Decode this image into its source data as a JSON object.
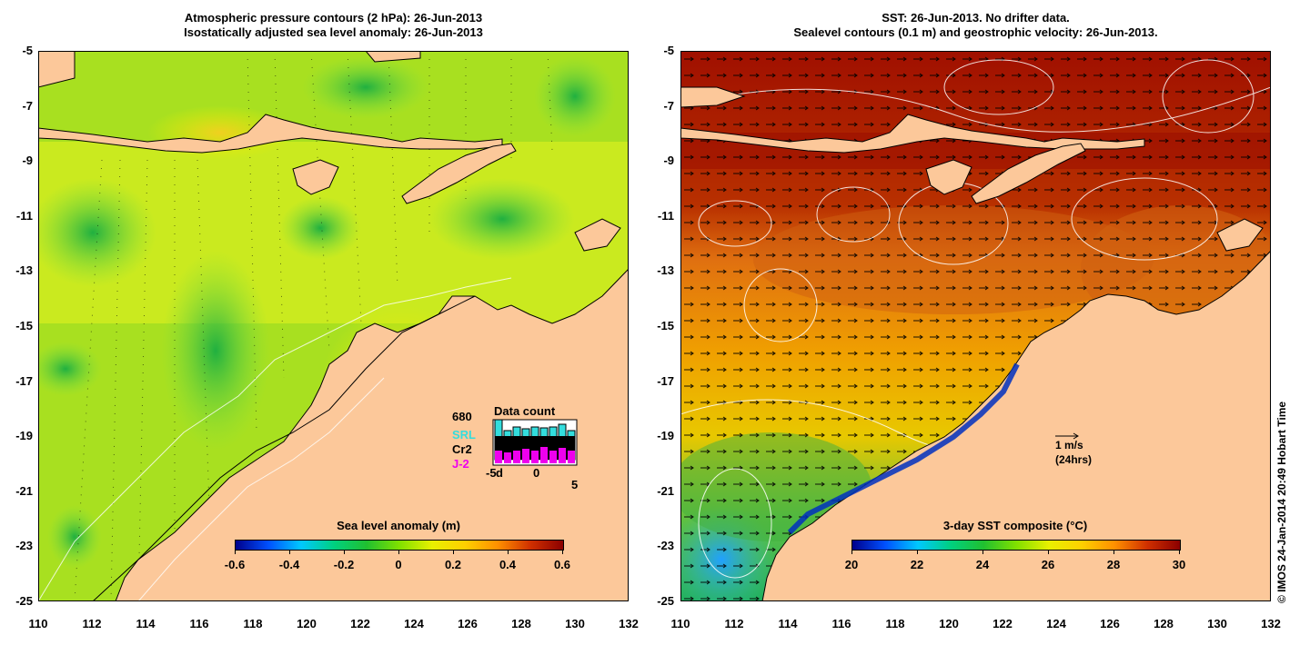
{
  "left_panel": {
    "title_line1": "Atmospheric pressure contours (2 hPa): 26-Jun-2013",
    "title_line2": "Isostatically adjusted sea level anomaly: 26-Jun-2013",
    "colorbar": {
      "title": "Sea level anomaly (m)",
      "ticks": [
        "-0.6",
        "-0.4",
        "-0.2",
        "0",
        "0.2",
        "0.4",
        "0.6"
      ],
      "range": [
        -0.6,
        0.6
      ],
      "colors": [
        "#00008b",
        "#0050ff",
        "#00c8ff",
        "#00d080",
        "#20c030",
        "#80e000",
        "#e8f000",
        "#ffd000",
        "#ff9000",
        "#d03000",
        "#8b0000"
      ]
    },
    "data_count": {
      "title": "Data count",
      "total": "680",
      "satellites": [
        {
          "name": "SRL",
          "color": "#33dddd"
        },
        {
          "name": "Cr2",
          "color": "#000000"
        },
        {
          "name": "J-2",
          "color": "#ee00ee"
        }
      ],
      "x_ticks": [
        "-5",
        "d",
        "0",
        "5"
      ]
    }
  },
  "right_panel": {
    "title_line1": "SST: 26-Jun-2013. No drifter data.",
    "title_line2": "Sealevel contours (0.1 m) and geostrophic velocity: 26-Jun-2013.",
    "colorbar": {
      "title": "3-day SST composite (°C)",
      "ticks": [
        "20",
        "22",
        "24",
        "26",
        "28",
        "30"
      ],
      "range": [
        20,
        30
      ],
      "colors": [
        "#00008b",
        "#0050ff",
        "#00c8ff",
        "#00d080",
        "#20c030",
        "#80e000",
        "#e8f000",
        "#ffd000",
        "#ff9000",
        "#d03000",
        "#8b0000"
      ]
    },
    "velocity_scale": {
      "line1": "1 m/s",
      "line2": "(24hrs)"
    }
  },
  "axes": {
    "lat_ticks": [
      "-5",
      "-7",
      "-9",
      "-11",
      "-13",
      "-15",
      "-17",
      "-19",
      "-21",
      "-23",
      "-25"
    ],
    "lon_ticks": [
      "110",
      "112",
      "114",
      "116",
      "118",
      "120",
      "122",
      "124",
      "126",
      "128",
      "130",
      "132"
    ],
    "lat_range": [
      -25,
      -5
    ],
    "lon_range": [
      110,
      132
    ]
  },
  "colors": {
    "land": "#fcc89a",
    "coast": "#000000"
  },
  "credit": "© IMOS 24-Jan-2014 20:49 Hobart Time"
}
